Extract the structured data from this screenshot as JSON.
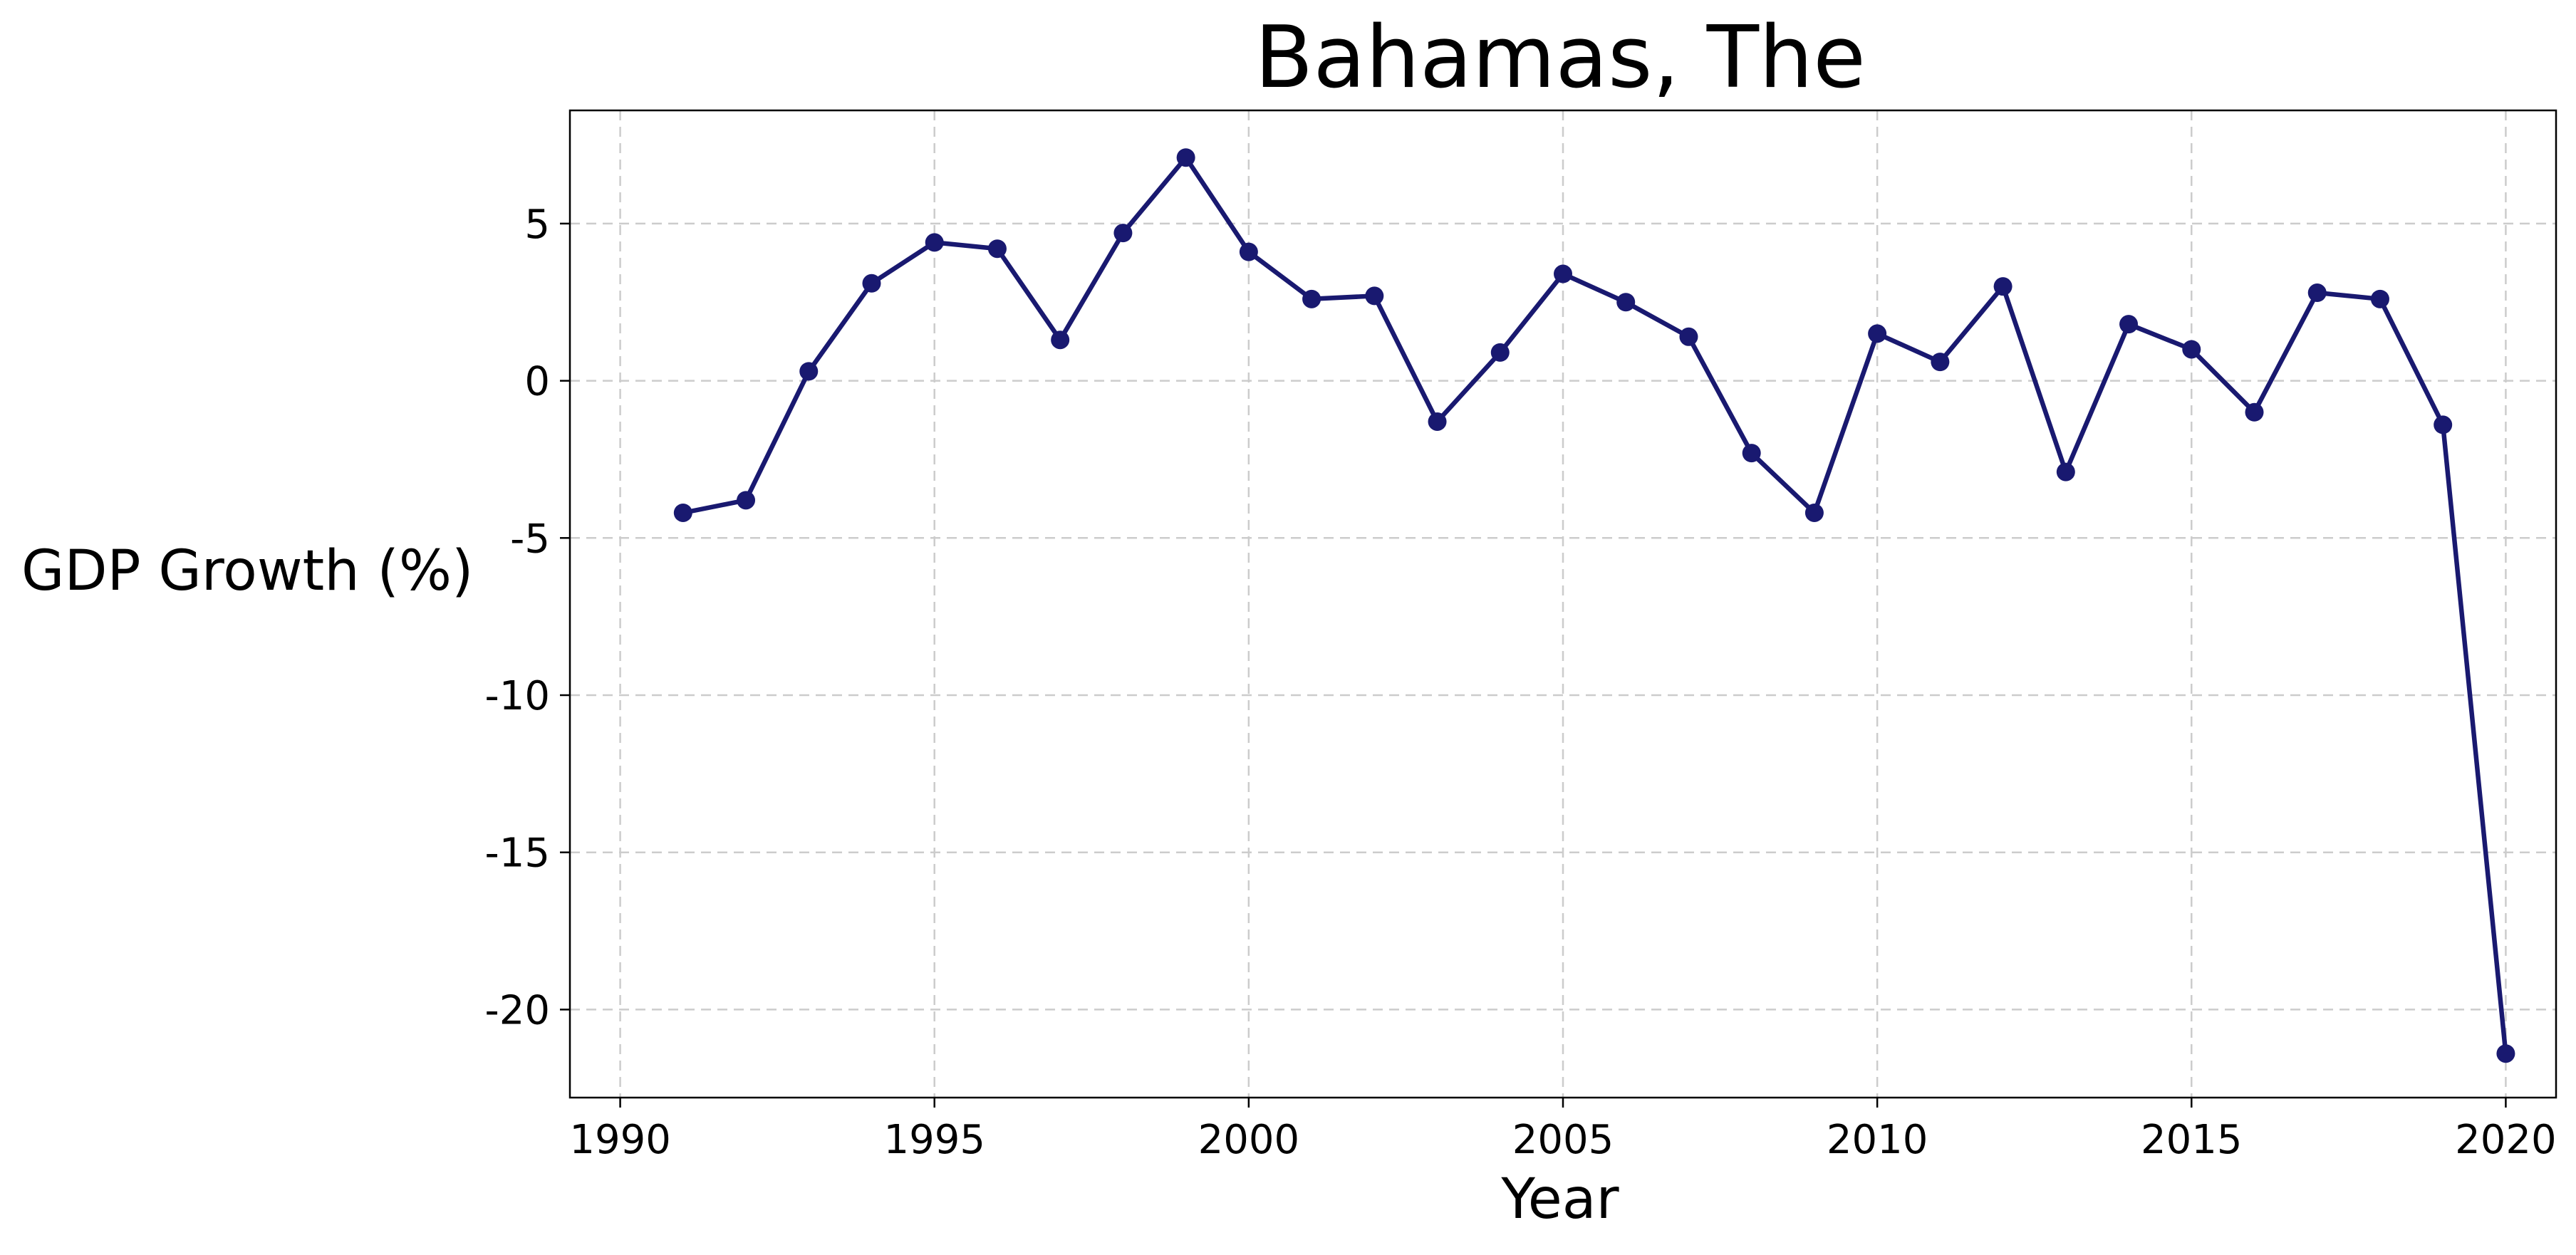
{
  "chart_data": {
    "type": "line",
    "title": "Bahamas, The",
    "xlabel": "Year",
    "ylabel": "GDP Growth (%)",
    "xlim": [
      1989.2,
      2020.8
    ],
    "ylim": [
      -22.8,
      8.6
    ],
    "xticks": [
      1990,
      1995,
      2000,
      2005,
      2010,
      2015,
      2020
    ],
    "yticks": [
      5,
      0,
      -5,
      -10,
      -15,
      -20
    ],
    "grid": true,
    "marker": "circle",
    "color": "#191970",
    "series": [
      {
        "x": [
          1991,
          1992,
          1993,
          1994,
          1995,
          1996,
          1997,
          1998,
          1999,
          2000,
          2001,
          2002,
          2003,
          2004,
          2005,
          2006,
          2007,
          2008,
          2009,
          2010,
          2011,
          2012,
          2013,
          2014,
          2015,
          2016,
          2017,
          2018,
          2019,
          2020
        ],
        "y": [
          -4.2,
          -3.8,
          0.3,
          3.1,
          4.4,
          4.2,
          1.3,
          4.7,
          7.1,
          4.1,
          2.6,
          2.7,
          -1.3,
          0.9,
          3.4,
          2.5,
          1.4,
          -2.3,
          -4.2,
          1.5,
          0.6,
          3.0,
          -2.9,
          1.8,
          1.0,
          -1.0,
          2.8,
          2.6,
          -1.4,
          -21.4
        ]
      }
    ]
  }
}
